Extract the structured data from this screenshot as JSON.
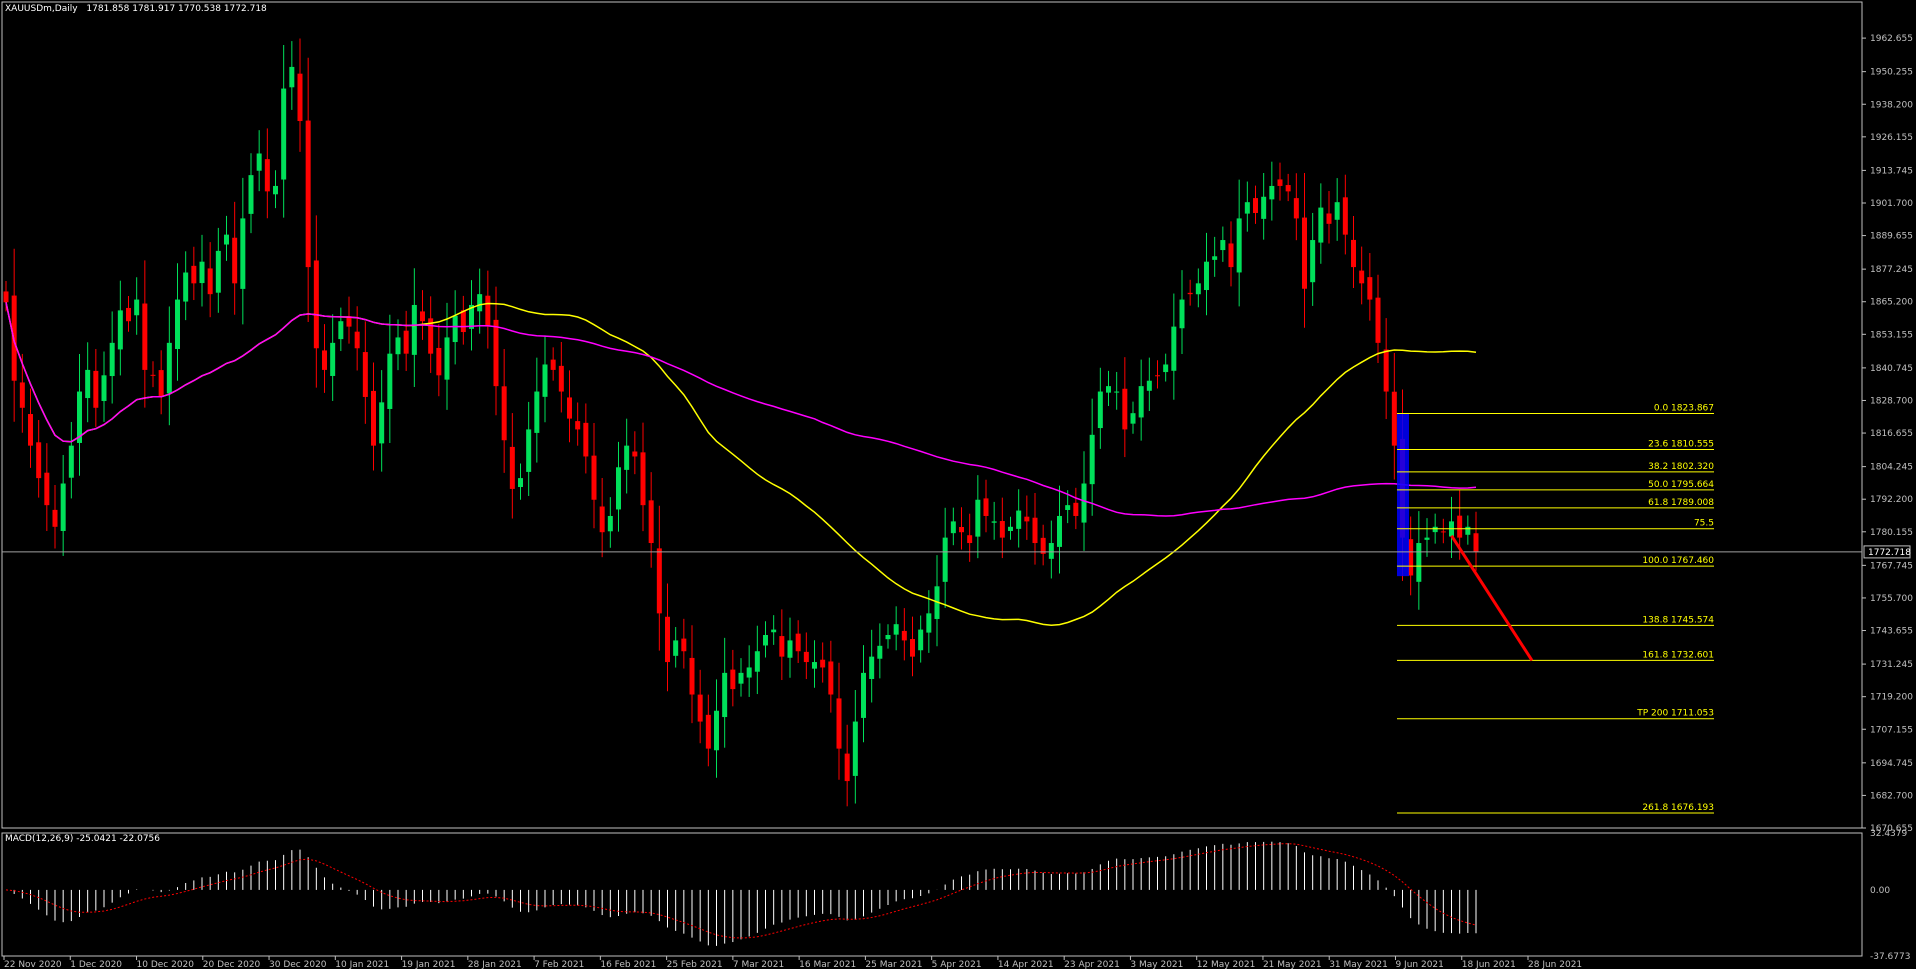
{
  "header": {
    "symbol": "XAUUSDm,Daily",
    "ohlc": "1781.858 1781.917 1770.538 1772.718"
  },
  "current_price_label": "1772.718",
  "macd_label": "MACD(12,26,9) -25.0421 -22.0756",
  "colors": {
    "background": "#000000",
    "axis": "#c0c0c0",
    "bull": "#00e05a",
    "bear": "#ff0000",
    "ma_fast": "#ffff00",
    "ma_slow": "#ff00ff",
    "fib": "#ffff00",
    "fib_zone": "#0000ff",
    "projection": "#ff0000",
    "macd_hist": "#ffffff",
    "macd_signal": "#ff0000"
  },
  "chart_data": [
    {
      "type": "candlestick",
      "instrument": "XAUUSDm",
      "timeframe": "Daily",
      "y_ticks": [
        1962.655,
        1950.255,
        1938.2,
        1926.155,
        1913.745,
        1901.7,
        1889.655,
        1877.245,
        1865.2,
        1853.155,
        1840.745,
        1828.7,
        1816.655,
        1804.245,
        1792.2,
        1780.155,
        1767.745,
        1755.7,
        1743.655,
        1731.245,
        1719.2,
        1707.155,
        1694.745,
        1682.7,
        1670.655
      ],
      "ylim": [
        1670.655,
        1976
      ],
      "x_labels": [
        "22 Nov 2020",
        "1 Dec 2020",
        "10 Dec 2020",
        "20 Dec 2020",
        "30 Dec 2020",
        "10 Jan 2021",
        "19 Jan 2021",
        "28 Jan 2021",
        "7 Feb 2021",
        "16 Feb 2021",
        "25 Feb 2021",
        "7 Mar 2021",
        "16 Mar 2021",
        "25 Mar 2021",
        "5 Apr 2021",
        "14 Apr 2021",
        "23 Apr 2021",
        "3 May 2021",
        "12 May 2021",
        "21 May 2021",
        "31 May 2021",
        "9 Jun 2021",
        "18 Jun 2021",
        "28 Jun 2021"
      ],
      "closes": [
        1865,
        1836,
        1826,
        1812,
        1800,
        1790,
        1782,
        1798,
        1812,
        1832,
        1840,
        1826,
        1838,
        1850,
        1862,
        1858,
        1866,
        1840,
        1838,
        1830,
        1850,
        1866,
        1876,
        1872,
        1880,
        1868,
        1884,
        1890,
        1872,
        1896,
        1912,
        1920,
        1906,
        1908,
        1944,
        1952,
        1932,
        1878,
        1848,
        1840,
        1850,
        1858,
        1856,
        1848,
        1830,
        1812,
        1828,
        1846,
        1852,
        1846,
        1864,
        1858,
        1846,
        1838,
        1852,
        1860,
        1854,
        1864,
        1868,
        1856,
        1834,
        1814,
        1796,
        1800,
        1818,
        1832,
        1842,
        1840,
        1832,
        1822,
        1818,
        1808,
        1792,
        1780,
        1786,
        1804,
        1812,
        1808,
        1790,
        1776,
        1750,
        1732,
        1740,
        1736,
        1720,
        1710,
        1700,
        1714,
        1728,
        1722,
        1728,
        1730,
        1736,
        1742,
        1744,
        1734,
        1740,
        1736,
        1732,
        1732,
        1730,
        1720,
        1700,
        1688,
        1710,
        1728,
        1734,
        1738,
        1742,
        1746,
        1740,
        1734,
        1744,
        1750,
        1760,
        1778,
        1784,
        1780,
        1776,
        1792,
        1786,
        1784,
        1778,
        1782,
        1788,
        1784,
        1776,
        1772,
        1776,
        1786,
        1790,
        1786,
        1798,
        1816,
        1832,
        1834,
        1832,
        1818,
        1824,
        1834,
        1836,
        1838,
        1842,
        1856,
        1866,
        1868,
        1872,
        1880,
        1882,
        1888,
        1878,
        1896,
        1902,
        1898,
        1904,
        1908,
        1908,
        1906,
        1896,
        1870,
        1888,
        1900,
        1894,
        1902,
        1890,
        1878,
        1872,
        1866,
        1850,
        1832,
        1812,
        1778,
        1764,
        1776,
        1778,
        1782,
        1780,
        1784,
        1778,
        1782,
        1772.718
      ],
      "projection": {
        "from": 1772.718,
        "to": 1732.601
      },
      "levels": [
        {
          "label": "0.0 1823.867",
          "price": 1823.867
        },
        {
          "label": "23.6 1810.555",
          "price": 1810.555
        },
        {
          "label": "38.2 1802.320",
          "price": 1802.32
        },
        {
          "label": "50.0 1795.664",
          "price": 1795.664
        },
        {
          "label": "61.8 1789.008",
          "price": 1789.008
        },
        {
          "label": "75.5",
          "price": 1781.3
        },
        {
          "label": "100.0 1767.460",
          "price": 1767.46
        },
        {
          "label": "138.8 1745.574",
          "price": 1745.574
        },
        {
          "label": "161.8 1732.601",
          "price": 1732.601
        },
        {
          "label": "TP 200 1711.053",
          "price": 1711.053
        },
        {
          "label": "261.8 1676.193",
          "price": 1676.193
        }
      ]
    },
    {
      "type": "macd",
      "params": "12,26,9",
      "main": -25.0421,
      "signal": -22.0756,
      "y_ticks": [
        32.4379,
        0.0,
        -37.6773
      ],
      "ylim": [
        -37.6773,
        32.4379
      ]
    }
  ]
}
